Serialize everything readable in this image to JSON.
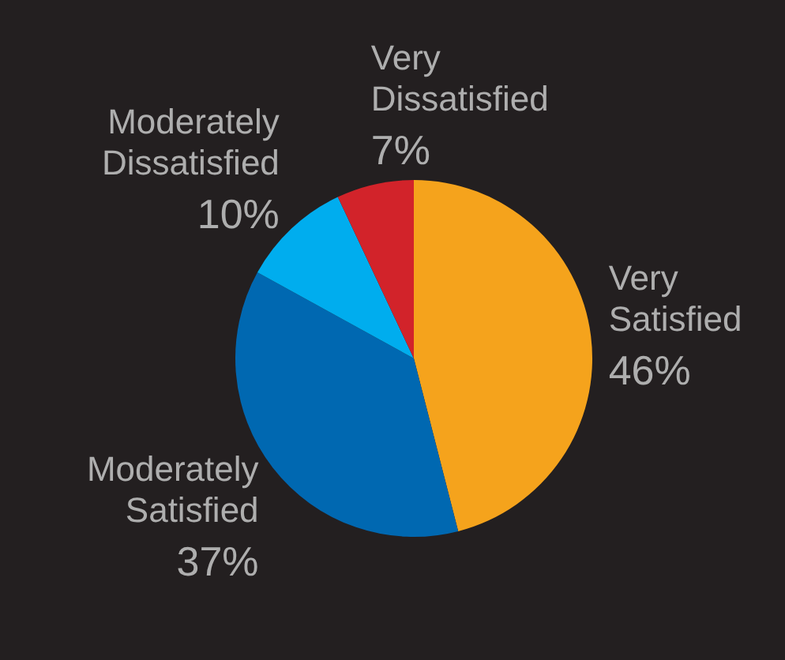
{
  "chart_data": {
    "type": "pie",
    "categories": [
      "Very Satisfied",
      "Moderately Satisfied",
      "Moderately Dissatisfied",
      "Very Dissatisfied"
    ],
    "values": [
      46,
      37,
      10,
      7
    ],
    "value_labels": [
      "46%",
      "37%",
      "10%",
      "7%"
    ],
    "colors": [
      "#f5a31c",
      "#0068b1",
      "#00adee",
      "#d2232a"
    ]
  }
}
